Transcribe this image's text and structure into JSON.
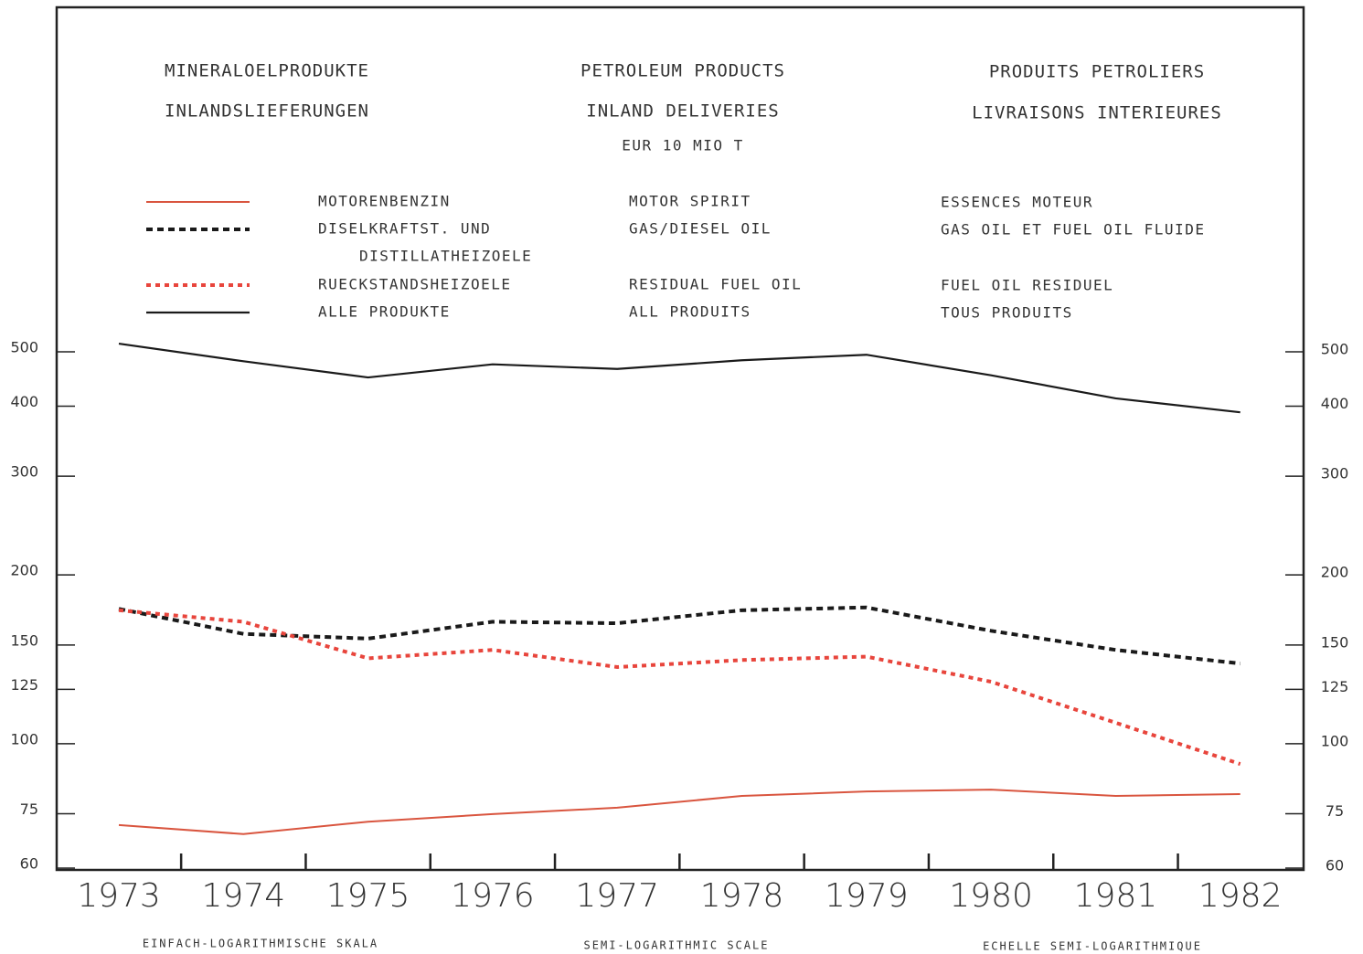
{
  "chart_data": {
    "type": "line",
    "title": {
      "de": [
        "MINERALOELPRODUKTE",
        "INLANDSLIEFERUNGEN"
      ],
      "en": [
        "PETROLEUM PRODUCTS",
        "INLAND DELIVERIES"
      ],
      "fr": [
        "PRODUITS PETROLIERS",
        "LIVRAISONS INTERIEURES"
      ]
    },
    "subtitle": "EUR 10 MIO T",
    "categories": [
      "1973",
      "1974",
      "1975",
      "1976",
      "1977",
      "1978",
      "1979",
      "1980",
      "1981",
      "1982"
    ],
    "series": [
      {
        "name": "MOTORENBENZIN",
        "name_en": "MOTOR SPIRIT",
        "name_fr": "ESSENCES MOTEUR",
        "color": "#d9553f",
        "dash": "none",
        "width": 2,
        "values": [
          71.6,
          69,
          72.6,
          74.9,
          76.9,
          80.7,
          82.2,
          82.8,
          80.7,
          81.3
        ]
      },
      {
        "name": "DISELKRAFTST. UND",
        "name_cont": "DISTILLATHEIZOELE",
        "name_en": "GAS/DIESEL OIL",
        "name_fr": "GAS OIL ET FUEL OIL FLUIDE",
        "color": "#1a1a1a",
        "dash": "7 5",
        "width": 4,
        "values": [
          174,
          157,
          154,
          165,
          164,
          173,
          175,
          159,
          147,
          139
        ]
      },
      {
        "name": "RUECKSTANDSHEIZOELE",
        "name_en": "RESIDUAL FUEL OIL",
        "name_fr": "FUEL OIL RESIDUEL",
        "color": "#e8453c",
        "dash": "5 5",
        "width": 4,
        "values": [
          173,
          165,
          142,
          147,
          137,
          141,
          143,
          129,
          109,
          92
        ]
      },
      {
        "name": "ALLE PRODUKTE",
        "name_en": "ALL PRODUITS",
        "name_fr": "TOUS PRODUITS",
        "color": "#1a1a1a",
        "dash": "none",
        "width": 2.2,
        "values": [
          517,
          481,
          450,
          475,
          466,
          483,
          494,
          454,
          413,
          390
        ]
      }
    ],
    "ylim": [
      60,
      500
    ],
    "yticks": [
      60,
      75,
      100,
      125,
      150,
      200,
      300,
      400,
      500
    ],
    "log_scale": true,
    "scale_note": {
      "de": "EINFACH-LOGARITHMISCHE SKALA",
      "en": "SEMI-LOGARITHMIC SCALE",
      "fr": "ECHELLE SEMI-LOGARITHMIQUE"
    }
  }
}
